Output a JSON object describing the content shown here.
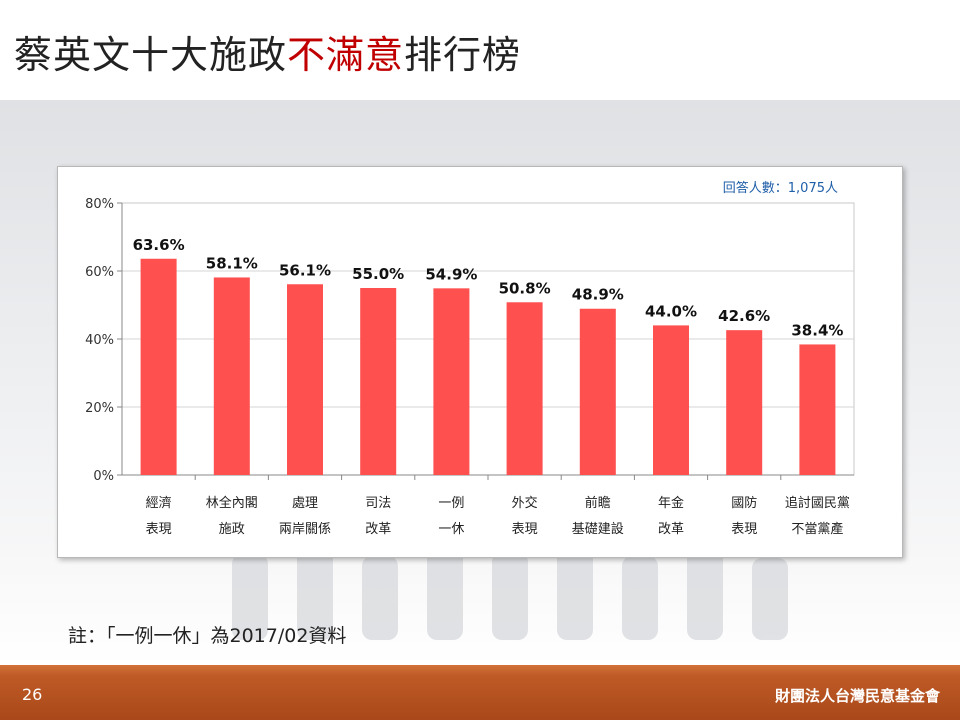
{
  "header": {
    "title_part1": "蔡英文十大施政",
    "title_highlight": "不滿意",
    "title_part2": "排行榜"
  },
  "chart_note": "回答人數：1,075人",
  "footnote": "註：「一例一休」為2017/02資料",
  "footer": {
    "page_number": "26",
    "organization": "財團法人台灣民意基金會"
  },
  "colors": {
    "bar": "#ff5050",
    "highlight": "#c00000",
    "footer": "#b8531f",
    "note": "#1f5fa8"
  },
  "chart_data": {
    "type": "bar",
    "title": "",
    "xlabel": "",
    "ylabel": "",
    "ylim": [
      0,
      80
    ],
    "yticks": [
      "0%",
      "20%",
      "40%",
      "60%",
      "80%"
    ],
    "grid": true,
    "categories": [
      [
        "經濟",
        "表現"
      ],
      [
        "林全內閣",
        "施政"
      ],
      [
        "處理",
        "兩岸關係"
      ],
      [
        "司法",
        "改革"
      ],
      [
        "一例",
        "一休"
      ],
      [
        "外交",
        "表現"
      ],
      [
        "前瞻",
        "基礎建設"
      ],
      [
        "年金",
        "改革"
      ],
      [
        "國防",
        "表現"
      ],
      [
        "追討國民黨",
        "不當黨產"
      ]
    ],
    "values": [
      63.6,
      58.1,
      56.1,
      55.0,
      54.9,
      50.8,
      48.9,
      44.0,
      42.6,
      38.4
    ],
    "value_labels": [
      "63.6%",
      "58.1%",
      "56.1%",
      "55.0%",
      "54.9%",
      "50.8%",
      "48.9%",
      "44.0%",
      "42.6%",
      "38.4%"
    ]
  }
}
